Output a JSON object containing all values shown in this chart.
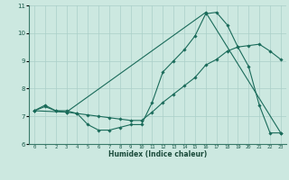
{
  "xlabel": "Humidex (Indice chaleur)",
  "background_color": "#cce8e0",
  "grid_color": "#aacfc8",
  "line_color": "#1a6b5a",
  "xlim": [
    -0.5,
    23.5
  ],
  "ylim": [
    6,
    11
  ],
  "yticks": [
    6,
    7,
    8,
    9,
    10,
    11
  ],
  "xticks": [
    0,
    1,
    2,
    3,
    4,
    5,
    6,
    7,
    8,
    9,
    10,
    11,
    12,
    13,
    14,
    15,
    16,
    17,
    18,
    19,
    20,
    21,
    22,
    23
  ],
  "line1_x": [
    0,
    1,
    2,
    3,
    4,
    5,
    6,
    7,
    8,
    9,
    10,
    11,
    12,
    13,
    14,
    15,
    16,
    17,
    18,
    19,
    20,
    21,
    22,
    23
  ],
  "line1_y": [
    7.2,
    7.4,
    7.2,
    7.2,
    7.1,
    6.7,
    6.5,
    6.5,
    6.6,
    6.7,
    6.7,
    7.5,
    8.6,
    9.0,
    9.4,
    9.9,
    10.7,
    10.75,
    10.3,
    9.5,
    8.8,
    7.4,
    6.4,
    6.4
  ],
  "line2_x": [
    0,
    1,
    2,
    3,
    4,
    5,
    6,
    7,
    8,
    9,
    10,
    11,
    12,
    13,
    14,
    15,
    16,
    17,
    18,
    19,
    20,
    21,
    22,
    23
  ],
  "line2_y": [
    7.2,
    7.35,
    7.2,
    7.15,
    7.1,
    7.05,
    7.0,
    6.95,
    6.9,
    6.85,
    6.85,
    7.15,
    7.5,
    7.8,
    8.1,
    8.4,
    8.85,
    9.05,
    9.35,
    9.5,
    9.55,
    9.6,
    9.35,
    9.05
  ],
  "line3_x": [
    0,
    3,
    16,
    23
  ],
  "line3_y": [
    7.2,
    7.15,
    10.75,
    6.4
  ]
}
